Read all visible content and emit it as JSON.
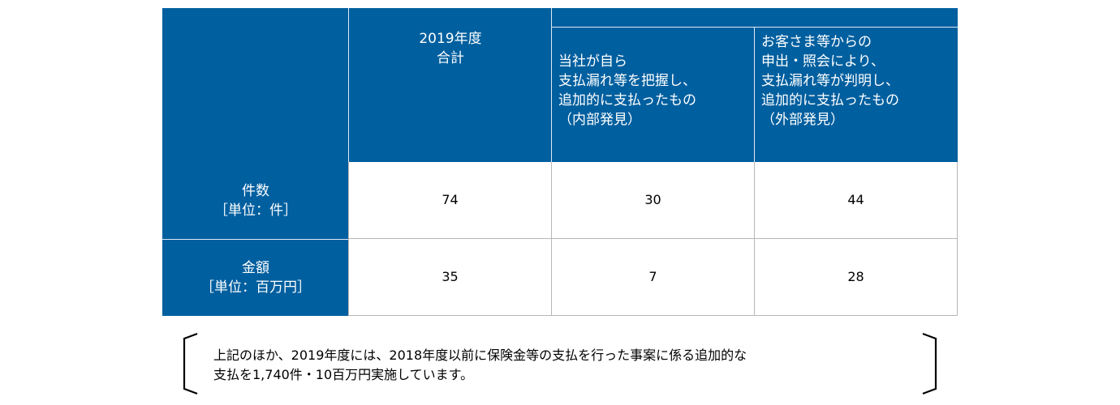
{
  "table": {
    "headers": {
      "total": [
        "2019年度",
        "合計"
      ],
      "internal": [
        "当社が自ら",
        "支払漏れ等を把握し、",
        "追加的に支払ったもの",
        "（内部発見）"
      ],
      "external": [
        "お客さま等からの",
        "申出・照会により、",
        "支払漏れ等が判明し、",
        "追加的に支払ったもの",
        "（外部発見）"
      ]
    },
    "rows": [
      {
        "label": [
          "件数",
          "［単位：件］"
        ],
        "values": [
          "74",
          "30",
          "44"
        ]
      },
      {
        "label": [
          "金額",
          "［単位：百万円］"
        ],
        "values": [
          "35",
          "7",
          "28"
        ]
      }
    ]
  },
  "note": {
    "lines": [
      "上記のほか、2019年度には、2018年度以前に保険金等の支払を行った事案に係る追加的な",
      "支払を1,740件・10百万円実施しています。"
    ]
  }
}
